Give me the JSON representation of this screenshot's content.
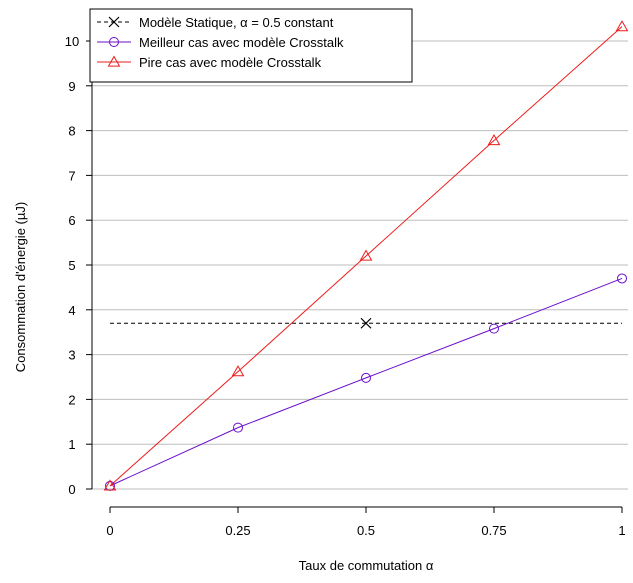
{
  "chart_data": {
    "type": "line",
    "xlabel": "Taux de commutation α",
    "ylabel": "Consommation d'énergie (µJ)",
    "x_ticks": [
      0,
      0.25,
      0.5,
      0.75,
      1
    ],
    "x_tick_labels": [
      "0",
      "0.25",
      "0.5",
      "0.75",
      "1"
    ],
    "y_ticks": [
      0,
      1,
      2,
      3,
      4,
      5,
      6,
      7,
      8,
      9,
      10
    ],
    "y_tick_labels": [
      "0",
      "1",
      "2",
      "3",
      "4",
      "5",
      "6",
      "7",
      "8",
      "9",
      "10"
    ],
    "xlim": [
      0,
      1
    ],
    "ylim": [
      0,
      10.3
    ],
    "grid": "horizontal",
    "legend_position": "top-left",
    "series": [
      {
        "name": "Modèle Statique, α = 0.5 constant",
        "color": "#000000",
        "line_style": "dashed",
        "marker": "cross",
        "x": [
          0.5
        ],
        "y": [
          3.7
        ],
        "reference_line": {
          "x": [
            0,
            1
          ],
          "y": 3.7
        }
      },
      {
        "name": "Meilleur cas avec modèle Crosstalk",
        "color": "#6a0dcd",
        "line_style": "solid",
        "marker": "circle",
        "x": [
          0,
          0.25,
          0.5,
          0.75,
          1
        ],
        "y": [
          0.07,
          1.37,
          2.48,
          3.58,
          4.7
        ]
      },
      {
        "name": "Pire cas avec modèle Crosstalk",
        "color": "#ee1c1c",
        "line_style": "solid",
        "marker": "triangle",
        "x": [
          0,
          0.25,
          0.5,
          0.75,
          1
        ],
        "y": [
          0.07,
          2.62,
          5.2,
          7.78,
          10.32
        ]
      }
    ]
  }
}
